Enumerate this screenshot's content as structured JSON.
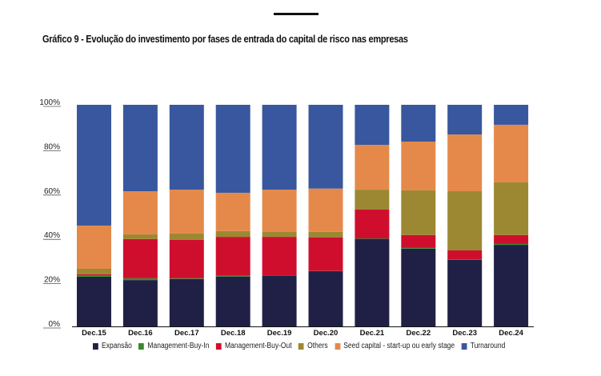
{
  "title": "Gráfico 9 - Evolução do investimento por fases de entrada do capital de risco nas empresas",
  "chart_data": {
    "type": "bar",
    "stacked": true,
    "title": "Gráfico 9 - Evolução do investimento por fases de entrada do capital de risco nas empresas",
    "xlabel": "",
    "ylabel": "",
    "ylim": [
      0,
      100
    ],
    "yticks": [
      "0%",
      "20%",
      "40%",
      "60%",
      "80%",
      "100%"
    ],
    "categories": [
      "Dec.15",
      "Dec.16",
      "Dec.17",
      "Dec.18",
      "Dec.19",
      "Dec.20",
      "Dec.21",
      "Dec.22",
      "Dec.23",
      "Dec.24"
    ],
    "legend_position": "bottom",
    "series": [
      {
        "name": "Expansão",
        "color": "#202047",
        "values": [
          22.4,
          20.9,
          21.4,
          22.5,
          22.9,
          24.9,
          39.5,
          35.1,
          30.1,
          36.8
        ]
      },
      {
        "name": "Management-Buy-In",
        "color": "#3a8a2e",
        "values": [
          0.7,
          0.8,
          0.3,
          0.4,
          0.2,
          0.1,
          0.2,
          0.3,
          0.2,
          0.4
        ]
      },
      {
        "name": "Management-Buy-Out",
        "color": "#cf0e2e",
        "values": [
          0.4,
          17.7,
          17.3,
          17.5,
          17.3,
          15.2,
          13.0,
          5.8,
          4.0,
          4.0
        ]
      },
      {
        "name": "Others",
        "color": "#9c8833",
        "values": [
          2.5,
          2.1,
          2.9,
          2.6,
          2.2,
          2.5,
          9.0,
          20.2,
          26.7,
          23.8
        ]
      },
      {
        "name": "Seed capital - start-up ou early stage",
        "color": "#e5894b",
        "values": [
          19.5,
          19.5,
          19.8,
          17.3,
          19.1,
          19.5,
          20.2,
          22.0,
          25.6,
          26.0
        ]
      },
      {
        "name": "Turnaround",
        "color": "#38579e",
        "values": [
          54.5,
          39.0,
          38.3,
          39.7,
          38.3,
          37.8,
          18.1,
          16.6,
          13.4,
          9.0
        ]
      }
    ]
  }
}
